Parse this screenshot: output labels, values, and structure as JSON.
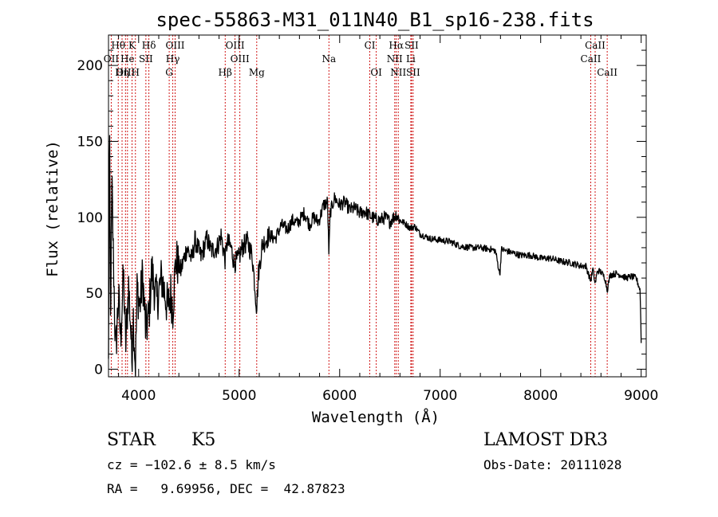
{
  "chart_data": {
    "type": "line",
    "title": "spec-55863-M31_011N40_B1_sp16-238.fits",
    "xlabel": "Wavelength (Å)",
    "ylabel": "Flux (relative)",
    "xlim": [
      3700,
      9050
    ],
    "ylim": [
      -5,
      220
    ],
    "xticks": [
      4000,
      5000,
      6000,
      7000,
      8000,
      9000
    ],
    "yticks": [
      0,
      50,
      100,
      150,
      200
    ],
    "x_minor_step": 200,
    "y_minor_step": 10,
    "line_color": "#000000",
    "line_marker_color": "#cc0000",
    "spectrum_anchors": [
      [
        3700,
        2
      ],
      [
        3710,
        165
      ],
      [
        3720,
        30
      ],
      [
        3735,
        120
      ],
      [
        3750,
        70
      ],
      [
        3770,
        10
      ],
      [
        3800,
        48
      ],
      [
        3820,
        20
      ],
      [
        3850,
        62
      ],
      [
        3870,
        15
      ],
      [
        3900,
        55
      ],
      [
        3920,
        30
      ],
      [
        3933,
        5
      ],
      [
        3945,
        40
      ],
      [
        3968,
        0
      ],
      [
        3985,
        55
      ],
      [
        4010,
        40
      ],
      [
        4040,
        62
      ],
      [
        4070,
        25
      ],
      [
        4102,
        35
      ],
      [
        4130,
        65
      ],
      [
        4180,
        45
      ],
      [
        4230,
        60
      ],
      [
        4290,
        40
      ],
      [
        4320,
        50
      ],
      [
        4340,
        40
      ],
      [
        4370,
        72
      ],
      [
        4420,
        65
      ],
      [
        4480,
        80
      ],
      [
        4530,
        72
      ],
      [
        4560,
        85
      ],
      [
        4620,
        74
      ],
      [
        4680,
        86
      ],
      [
        4720,
        78
      ],
      [
        4780,
        80
      ],
      [
        4820,
        88
      ],
      [
        4861,
        72
      ],
      [
        4880,
        84
      ],
      [
        4920,
        80
      ],
      [
        4950,
        70
      ],
      [
        4990,
        72
      ],
      [
        5030,
        80
      ],
      [
        5080,
        84
      ],
      [
        5130,
        75
      ],
      [
        5175,
        40
      ],
      [
        5190,
        62
      ],
      [
        5230,
        82
      ],
      [
        5300,
        88
      ],
      [
        5360,
        86
      ],
      [
        5420,
        95
      ],
      [
        5480,
        92
      ],
      [
        5530,
        98
      ],
      [
        5580,
        96
      ],
      [
        5650,
        103
      ],
      [
        5700,
        95
      ],
      [
        5740,
        100
      ],
      [
        5790,
        97
      ],
      [
        5840,
        108
      ],
      [
        5880,
        110
      ],
      [
        5893,
        75
      ],
      [
        5905,
        103
      ],
      [
        5950,
        113
      ],
      [
        6000,
        108
      ],
      [
        6050,
        110
      ],
      [
        6100,
        105
      ],
      [
        6150,
        106
      ],
      [
        6200,
        103
      ],
      [
        6250,
        104
      ],
      [
        6300,
        101
      ],
      [
        6350,
        99
      ],
      [
        6400,
        98
      ],
      [
        6450,
        100
      ],
      [
        6500,
        97
      ],
      [
        6563,
        102
      ],
      [
        6600,
        98
      ],
      [
        6650,
        96
      ],
      [
        6700,
        93
      ],
      [
        6750,
        94
      ],
      [
        6800,
        89
      ],
      [
        6900,
        86
      ],
      [
        7000,
        85
      ],
      [
        7100,
        84
      ],
      [
        7200,
        81
      ],
      [
        7300,
        80
      ],
      [
        7400,
        80
      ],
      [
        7500,
        79
      ],
      [
        7550,
        78
      ],
      [
        7594,
        62
      ],
      [
        7610,
        79
      ],
      [
        7650,
        78
      ],
      [
        7700,
        77
      ],
      [
        7800,
        75
      ],
      [
        7900,
        75
      ],
      [
        8000,
        73
      ],
      [
        8100,
        73
      ],
      [
        8200,
        71
      ],
      [
        8300,
        70
      ],
      [
        8400,
        68
      ],
      [
        8450,
        68
      ],
      [
        8498,
        58
      ],
      [
        8520,
        66
      ],
      [
        8542,
        56
      ],
      [
        8565,
        65
      ],
      [
        8600,
        64
      ],
      [
        8640,
        60
      ],
      [
        8662,
        52
      ],
      [
        8690,
        62
      ],
      [
        8750,
        63
      ],
      [
        8800,
        62
      ],
      [
        8850,
        60
      ],
      [
        8900,
        61
      ],
      [
        8950,
        60
      ],
      [
        8990,
        52
      ],
      [
        9000,
        18
      ]
    ],
    "emission_lines": [
      {
        "label": "Hθ",
        "wavelength": 3797,
        "row": 0
      },
      {
        "label": "K",
        "wavelength": 3934,
        "row": 0
      },
      {
        "label": "Hδ",
        "wavelength": 4102,
        "row": 0
      },
      {
        "label": "OIII",
        "wavelength": 4363,
        "row": 0
      },
      {
        "label": "OIII",
        "wavelength": 4959,
        "row": 0
      },
      {
        "label": "CI",
        "wavelength": 6300,
        "row": 0
      },
      {
        "label": "Hα",
        "wavelength": 6563,
        "row": 0
      },
      {
        "label": "SII",
        "wavelength": 6716,
        "row": 0
      },
      {
        "label": "CaII",
        "wavelength": 8542,
        "row": 0
      },
      {
        "label": "OII",
        "wavelength": 3727,
        "row": 1
      },
      {
        "label": "He",
        "wavelength": 3889,
        "row": 1
      },
      {
        "label": "SII",
        "wavelength": 4072,
        "row": 1
      },
      {
        "label": "Hγ",
        "wavelength": 4340,
        "row": 1
      },
      {
        "label": "OIII",
        "wavelength": 5007,
        "row": 1
      },
      {
        "label": "Na",
        "wavelength": 5893,
        "row": 1
      },
      {
        "label": "NII",
        "wavelength": 6548,
        "row": 1
      },
      {
        "label": "Li",
        "wavelength": 6708,
        "row": 1
      },
      {
        "label": "CaII",
        "wavelength": 8498,
        "row": 1
      },
      {
        "label": "OIII",
        "wavelength": 3869,
        "row": 2
      },
      {
        "label": "Hη",
        "wavelength": 3835,
        "row": 2
      },
      {
        "label": "H",
        "wavelength": 3968,
        "row": 2
      },
      {
        "label": "G",
        "wavelength": 4304,
        "row": 2
      },
      {
        "label": "Hβ",
        "wavelength": 4861,
        "row": 2
      },
      {
        "label": "Mg",
        "wavelength": 5175,
        "row": 2
      },
      {
        "label": "OI",
        "wavelength": 6364,
        "row": 2
      },
      {
        "label": "NII",
        "wavelength": 6583,
        "row": 2
      },
      {
        "label": "SII",
        "wavelength": 6731,
        "row": 2
      },
      {
        "label": "CaII",
        "wavelength": 8662,
        "row": 2
      }
    ]
  },
  "info": {
    "class": "STAR",
    "subclass": "K5",
    "survey": "LAMOST DR3",
    "cz": "cz = −102.6 ± 8.5 km/s",
    "obs_date": "Obs-Date: 20111028",
    "radec": "RA =   9.69956, DEC =  42.87823"
  }
}
